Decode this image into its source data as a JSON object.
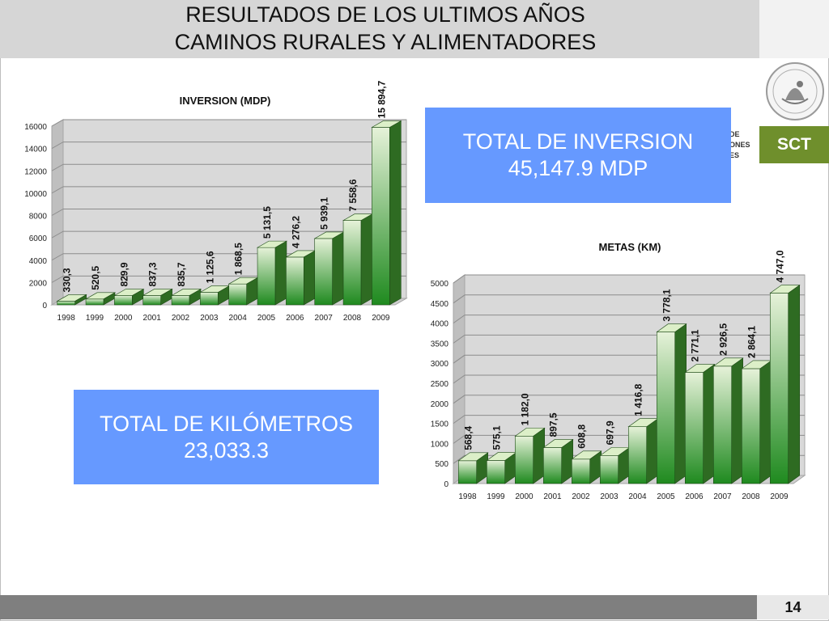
{
  "header": {
    "title_line1": "RESULTADOS DE LOS ULTIMOS AÑOS",
    "title_line2": "CAMINOS RURALES Y ALIMENTADORES"
  },
  "logo": {
    "name": "SCT",
    "partial_text": [
      "DE",
      "ONES",
      "ES"
    ],
    "seal_icon": "mexican-coat-of-arms-seal"
  },
  "totals": {
    "inversion": {
      "line1": "TOTAL DE INVERSION",
      "line2": "45,147.9 MDP"
    },
    "kilometros": {
      "line1": "TOTAL DE KILÓMETROS",
      "line2": "23,033.3"
    }
  },
  "page_number": "14",
  "colors": {
    "title_bar": "#d6d6d6",
    "total_box": "#6699ff",
    "bar_dark": "#1f8a1f",
    "bar_light": "#e6f2d9",
    "sct_green": "#6f8f2c",
    "bottom_bar": "#7f7f7f"
  },
  "chart_data": [
    {
      "type": "bar",
      "title": "INVERSION (MDP)",
      "categories": [
        "1998",
        "1999",
        "2000",
        "2001",
        "2002",
        "2003",
        "2004",
        "2005",
        "2006",
        "2007",
        "2008",
        "2009"
      ],
      "values": [
        330.3,
        520.5,
        829.9,
        837.3,
        835.7,
        1125.6,
        1868.5,
        5131.5,
        4276.2,
        5939.1,
        7558.6,
        15894.7
      ],
      "value_labels": [
        "330,3",
        "520,5",
        "829,9",
        "837,3",
        "835,7",
        "1 125,6",
        "1 868,5",
        "5 131,5",
        "4 276,2",
        "5 939,1",
        "7 558,6",
        "15 894,7"
      ],
      "yticks": [
        "0",
        "2000",
        "4000",
        "6000",
        "8000",
        "10000",
        "12000",
        "14000",
        "16000"
      ],
      "ylim": [
        0,
        16000
      ],
      "grid": true,
      "style": "3d"
    },
    {
      "type": "bar",
      "title": "METAS  (KM)",
      "categories": [
        "1998",
        "1999",
        "2000",
        "2001",
        "2002",
        "2003",
        "2004",
        "2005",
        "2006",
        "2007",
        "2008",
        "2009"
      ],
      "values": [
        568.4,
        575.1,
        1182.0,
        897.5,
        608.8,
        697.9,
        1416.8,
        3778.1,
        2771.1,
        2926.5,
        2864.1,
        4747.0
      ],
      "value_labels": [
        "568,4",
        "575,1",
        "1 182,0",
        "897,5",
        "608,8",
        "697,9",
        "1 416,8",
        "3 778,1",
        "2 771,1",
        "2 926,5",
        "2 864,1",
        "4 747,0"
      ],
      "yticks": [
        "0",
        "500",
        "1000",
        "1500",
        "2000",
        "2500",
        "3000",
        "3500",
        "4000",
        "4500",
        "5000"
      ],
      "ylim": [
        0,
        5000
      ],
      "grid": true,
      "style": "3d"
    }
  ]
}
